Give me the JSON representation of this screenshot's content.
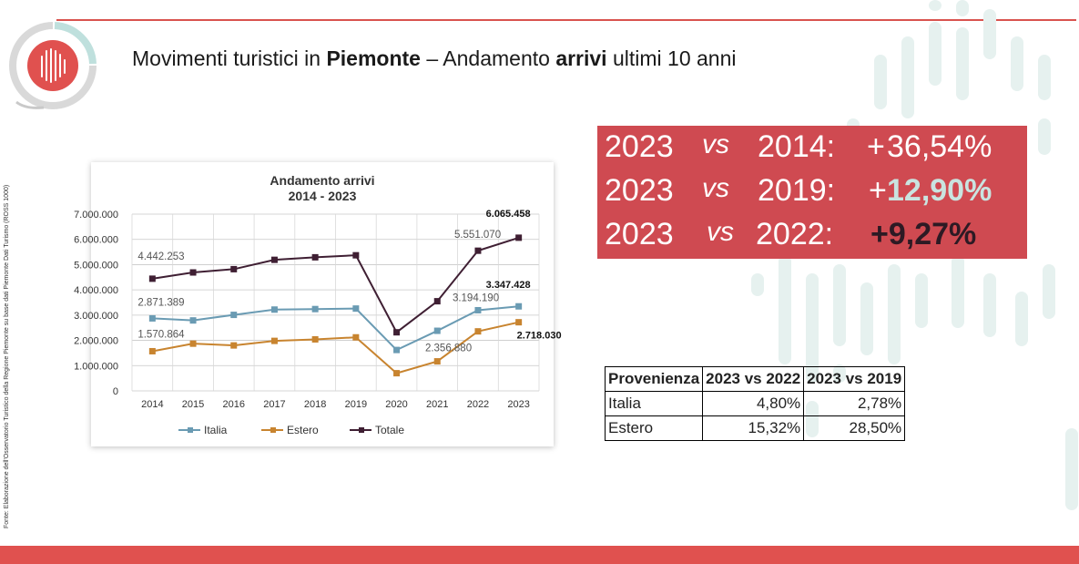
{
  "title": {
    "prefix": "Movimenti turistici in ",
    "region": "Piemonte",
    "middle": " – Andamento ",
    "metric": "arrivi",
    "suffix": " ultimi 10 anni"
  },
  "source_note": "Fonte: Elaborazione dell'Osservatorio Turistico della Regione Piemonte su base dati Piemonte Dati Turismo (ROSS 1000)",
  "kpi": [
    {
      "year_a": "2023",
      "vs": "vs",
      "year_b": "2014:",
      "sign": "+",
      "pct": "36,54%"
    },
    {
      "year_a": "2023",
      "vs": "vs",
      "year_b": "2019:",
      "sign": "+",
      "pct": "12,90%"
    },
    {
      "year_a": "2023",
      "vs": "vs",
      "year_b": "2022:",
      "sign": "",
      "pct": "+9,27%"
    }
  ],
  "colors": {
    "italia": "#6a9bb3",
    "estero": "#c8842f",
    "totale": "#3f1f33",
    "kpi_bg": "#cf4a51",
    "accent": "#d9534f"
  },
  "table": {
    "headers": [
      "Provenienza",
      "2023 vs 2022",
      "2023 vs 2019"
    ],
    "rows": [
      [
        "Italia",
        "4,80%",
        "2,78%"
      ],
      [
        "Estero",
        "15,32%",
        "28,50%"
      ]
    ]
  },
  "chart_data": {
    "type": "line",
    "title": "Andamento arrivi",
    "subtitle": "2014 - 2023",
    "x": [
      "2014",
      "2015",
      "2016",
      "2017",
      "2018",
      "2019",
      "2020",
      "2021",
      "2022",
      "2023"
    ],
    "ylim": [
      0,
      7000000
    ],
    "yticks": [
      "0",
      "1.000.000",
      "2.000.000",
      "3.000.000",
      "4.000.000",
      "5.000.000",
      "6.000.000",
      "7.000.000"
    ],
    "grid": true,
    "legend_position": "bottom",
    "series": [
      {
        "name": "Italia",
        "values": [
          2871389,
          2790000,
          3010000,
          3220000,
          3240000,
          3260000,
          1620000,
          2380000,
          3194190,
          3347428
        ]
      },
      {
        "name": "Estero",
        "values": [
          1570864,
          1870000,
          1800000,
          1980000,
          2040000,
          2120000,
          700000,
          1170000,
          2356880,
          2718030
        ]
      },
      {
        "name": "Totale",
        "values": [
          4442253,
          4690000,
          4820000,
          5190000,
          5290000,
          5370000,
          2320000,
          3550000,
          5551070,
          6065458
        ]
      }
    ],
    "data_labels": [
      {
        "series": "Totale",
        "x": "2014",
        "text": "4.442.253",
        "bold": false
      },
      {
        "series": "Italia",
        "x": "2014",
        "text": "2.871.389",
        "bold": false
      },
      {
        "series": "Estero",
        "x": "2014",
        "text": "1.570.864",
        "bold": false
      },
      {
        "series": "Totale",
        "x": "2022",
        "text": "5.551.070",
        "bold": false
      },
      {
        "series": "Italia",
        "x": "2022",
        "text": "3.194.190",
        "bold": false
      },
      {
        "series": "Estero",
        "x": "2022",
        "text": "2.356.880",
        "bold": false
      },
      {
        "series": "Totale",
        "x": "2023",
        "text": "6.065.458",
        "bold": true
      },
      {
        "series": "Italia",
        "x": "2023",
        "text": "3.347.428",
        "bold": true
      },
      {
        "series": "Estero",
        "x": "2023",
        "text": "2.718.030",
        "bold": true
      }
    ]
  }
}
